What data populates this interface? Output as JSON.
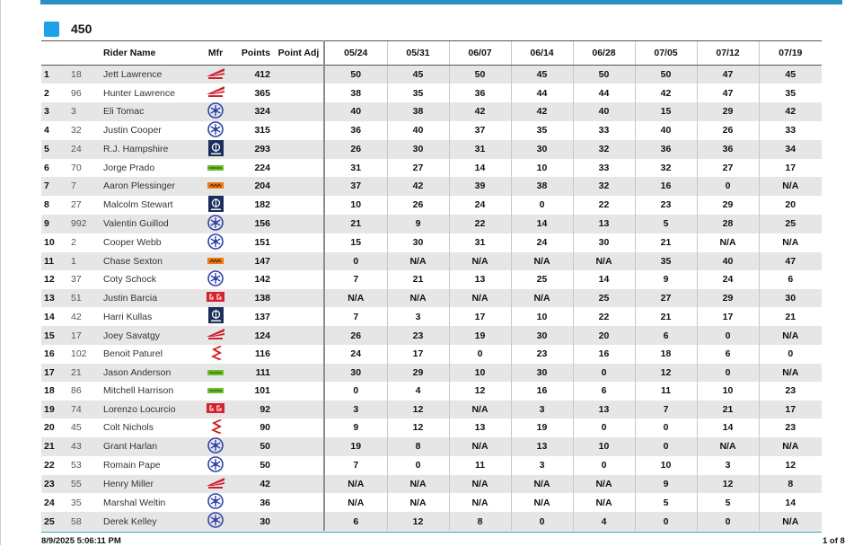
{
  "class_name": "450",
  "columns": {
    "rider": "Rider Name",
    "mfr": "Mfr",
    "points": "Points",
    "adj": "Point Adj",
    "races": [
      "05/24",
      "05/31",
      "06/07",
      "06/14",
      "06/28",
      "07/05",
      "07/12",
      "07/19"
    ]
  },
  "rows": [
    {
      "pos": "1",
      "num": "18",
      "name": "Jett Lawrence",
      "mfr": "honda-logo",
      "points": "412",
      "adj": "",
      "races": [
        "50",
        "45",
        "50",
        "45",
        "50",
        "50",
        "47",
        "45"
      ]
    },
    {
      "pos": "2",
      "num": "96",
      "name": "Hunter Lawrence",
      "mfr": "honda-logo",
      "points": "365",
      "adj": "",
      "races": [
        "38",
        "35",
        "36",
        "44",
        "44",
        "42",
        "47",
        "35"
      ]
    },
    {
      "pos": "3",
      "num": "3",
      "name": "Eli Tomac",
      "mfr": "yamaha-logo",
      "points": "324",
      "adj": "",
      "races": [
        "40",
        "38",
        "42",
        "42",
        "40",
        "15",
        "29",
        "42"
      ]
    },
    {
      "pos": "4",
      "num": "32",
      "name": "Justin Cooper",
      "mfr": "yamaha-logo",
      "points": "315",
      "adj": "",
      "races": [
        "36",
        "40",
        "37",
        "35",
        "33",
        "40",
        "26",
        "33"
      ]
    },
    {
      "pos": "5",
      "num": "24",
      "name": "R.J. Hampshire",
      "mfr": "husqvarna-logo",
      "points": "293",
      "adj": "",
      "races": [
        "26",
        "30",
        "31",
        "30",
        "32",
        "36",
        "36",
        "34"
      ]
    },
    {
      "pos": "6",
      "num": "70",
      "name": "Jorge Prado",
      "mfr": "kawasaki-logo",
      "points": "224",
      "adj": "",
      "races": [
        "31",
        "27",
        "14",
        "10",
        "33",
        "32",
        "27",
        "17"
      ]
    },
    {
      "pos": "7",
      "num": "7",
      "name": "Aaron Plessinger",
      "mfr": "ktm-logo",
      "points": "204",
      "adj": "",
      "races": [
        "37",
        "42",
        "39",
        "38",
        "32",
        "16",
        "0",
        "N/A"
      ]
    },
    {
      "pos": "8",
      "num": "27",
      "name": "Malcolm Stewart",
      "mfr": "husqvarna-logo",
      "points": "182",
      "adj": "",
      "races": [
        "10",
        "26",
        "24",
        "0",
        "22",
        "23",
        "29",
        "20"
      ]
    },
    {
      "pos": "9",
      "num": "992",
      "name": "Valentin Guillod",
      "mfr": "yamaha-logo",
      "points": "156",
      "adj": "",
      "races": [
        "21",
        "9",
        "22",
        "14",
        "13",
        "5",
        "28",
        "25"
      ]
    },
    {
      "pos": "10",
      "num": "2",
      "name": "Cooper Webb",
      "mfr": "yamaha-logo",
      "points": "151",
      "adj": "",
      "races": [
        "15",
        "30",
        "31",
        "24",
        "30",
        "21",
        "N/A",
        "N/A"
      ]
    },
    {
      "pos": "11",
      "num": "1",
      "name": "Chase Sexton",
      "mfr": "ktm-logo",
      "points": "147",
      "adj": "",
      "races": [
        "0",
        "N/A",
        "N/A",
        "N/A",
        "N/A",
        "35",
        "40",
        "47"
      ]
    },
    {
      "pos": "12",
      "num": "37",
      "name": "Coty Schock",
      "mfr": "yamaha-logo",
      "points": "142",
      "adj": "",
      "races": [
        "7",
        "21",
        "13",
        "25",
        "14",
        "9",
        "24",
        "6"
      ]
    },
    {
      "pos": "13",
      "num": "51",
      "name": "Justin Barcia",
      "mfr": "gasgas-logo",
      "points": "138",
      "adj": "",
      "races": [
        "N/A",
        "N/A",
        "N/A",
        "N/A",
        "25",
        "27",
        "29",
        "30"
      ]
    },
    {
      "pos": "14",
      "num": "42",
      "name": "Harri Kullas",
      "mfr": "husqvarna-logo",
      "points": "137",
      "adj": "",
      "races": [
        "7",
        "3",
        "17",
        "10",
        "22",
        "21",
        "17",
        "21"
      ]
    },
    {
      "pos": "15",
      "num": "17",
      "name": "Joey Savatgy",
      "mfr": "honda-logo",
      "points": "124",
      "adj": "",
      "races": [
        "26",
        "23",
        "19",
        "30",
        "20",
        "6",
        "0",
        "N/A"
      ]
    },
    {
      "pos": "16",
      "num": "102",
      "name": "Benoit Paturel",
      "mfr": "suzuki-logo",
      "points": "116",
      "adj": "",
      "races": [
        "24",
        "17",
        "0",
        "23",
        "16",
        "18",
        "6",
        "0"
      ]
    },
    {
      "pos": "17",
      "num": "21",
      "name": "Jason Anderson",
      "mfr": "kawasaki-logo",
      "points": "111",
      "adj": "",
      "races": [
        "30",
        "29",
        "10",
        "30",
        "0",
        "12",
        "0",
        "N/A"
      ]
    },
    {
      "pos": "18",
      "num": "86",
      "name": "Mitchell Harrison",
      "mfr": "kawasaki-logo",
      "points": "101",
      "adj": "",
      "races": [
        "0",
        "4",
        "12",
        "16",
        "6",
        "11",
        "10",
        "23"
      ]
    },
    {
      "pos": "19",
      "num": "74",
      "name": "Lorenzo Locurcio",
      "mfr": "gasgas-logo",
      "points": "92",
      "adj": "",
      "races": [
        "3",
        "12",
        "N/A",
        "3",
        "13",
        "7",
        "21",
        "17"
      ]
    },
    {
      "pos": "20",
      "num": "45",
      "name": "Colt Nichols",
      "mfr": "suzuki-logo",
      "points": "90",
      "adj": "",
      "races": [
        "9",
        "12",
        "13",
        "19",
        "0",
        "0",
        "14",
        "23"
      ]
    },
    {
      "pos": "21",
      "num": "43",
      "name": "Grant Harlan",
      "mfr": "yamaha-logo",
      "points": "50",
      "adj": "",
      "races": [
        "19",
        "8",
        "N/A",
        "13",
        "10",
        "0",
        "N/A",
        "N/A"
      ]
    },
    {
      "pos": "22",
      "num": "53",
      "name": "Romain Pape",
      "mfr": "yamaha-logo",
      "points": "50",
      "adj": "",
      "races": [
        "7",
        "0",
        "11",
        "3",
        "0",
        "10",
        "3",
        "12"
      ]
    },
    {
      "pos": "23",
      "num": "55",
      "name": "Henry Miller",
      "mfr": "honda-logo",
      "points": "42",
      "adj": "",
      "races": [
        "N/A",
        "N/A",
        "N/A",
        "N/A",
        "N/A",
        "9",
        "12",
        "8"
      ]
    },
    {
      "pos": "24",
      "num": "35",
      "name": "Marshal Weltin",
      "mfr": "yamaha-logo",
      "points": "36",
      "adj": "",
      "races": [
        "N/A",
        "N/A",
        "N/A",
        "N/A",
        "N/A",
        "5",
        "5",
        "14"
      ]
    },
    {
      "pos": "25",
      "num": "58",
      "name": "Derek Kelley",
      "mfr": "yamaha-logo",
      "points": "30",
      "adj": "",
      "races": [
        "6",
        "12",
        "8",
        "0",
        "4",
        "0",
        "0",
        "N/A"
      ]
    }
  ],
  "footer": {
    "timestamp": "8/9/2025 5:06:11 PM",
    "page": "1 of 8"
  },
  "colors": {
    "accent": "#2b8ec2",
    "class_swatch": "#1da1e8",
    "honda": "#d0202f",
    "yamaha": "#3042a8",
    "husqvarna": "#1c2f5c",
    "kawasaki": "#6cbf2a",
    "ktm": "#f07a12",
    "gasgas": "#d4232e",
    "suzuki": "#d71920"
  }
}
